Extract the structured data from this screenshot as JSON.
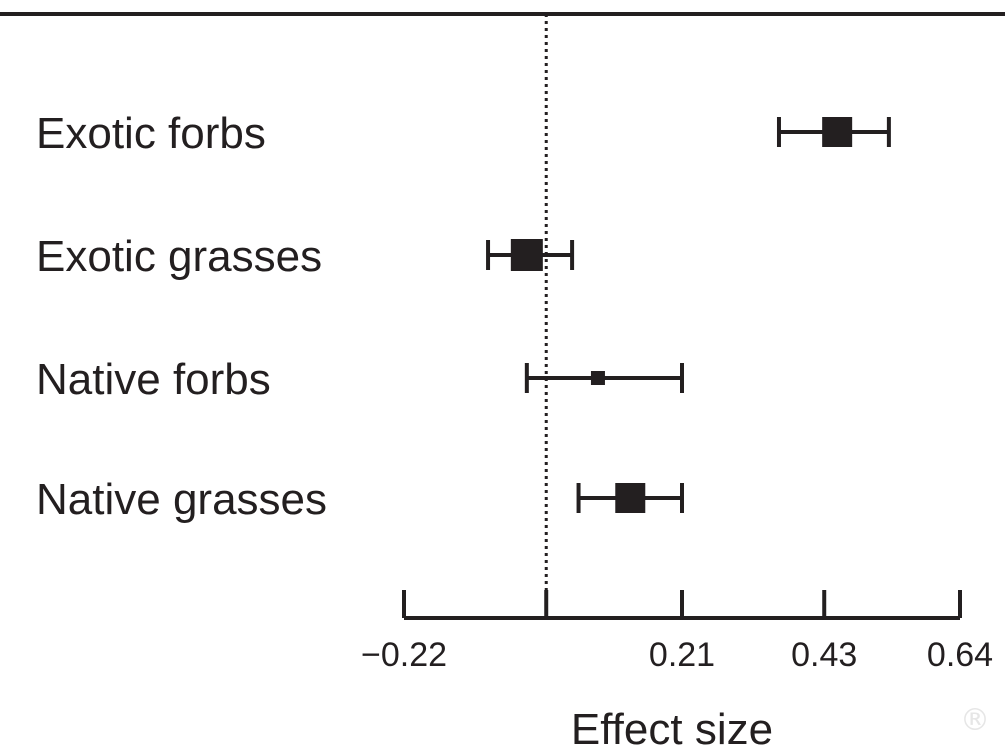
{
  "chart_data": {
    "type": "forest",
    "categories": [
      "Exotic forbs",
      "Exotic grasses",
      "Native forbs",
      "Native grasses"
    ],
    "points": [
      {
        "category": "Exotic forbs",
        "estimate": 0.45,
        "ci": [
          0.36,
          0.53
        ]
      },
      {
        "category": "Exotic grasses",
        "estimate": -0.03,
        "ci": [
          -0.09,
          0.04
        ]
      },
      {
        "category": "Native forbs",
        "estimate": 0.08,
        "ci": [
          -0.03,
          0.21
        ]
      },
      {
        "category": "Native grasses",
        "estimate": 0.13,
        "ci": [
          0.05,
          0.21
        ]
      }
    ],
    "xlabel": "Effect size",
    "xticks": [
      -0.22,
      0,
      0.21,
      0.43,
      0.64
    ],
    "xtick_labels": [
      "−0.22",
      "",
      "0.21",
      "0.43",
      "0.64"
    ],
    "xlim": [
      -0.22,
      0.64
    ],
    "reference_line": 0,
    "grid": false
  },
  "watermark": "®",
  "colors": {
    "ink": "#231f20",
    "background": "#ffffff"
  }
}
